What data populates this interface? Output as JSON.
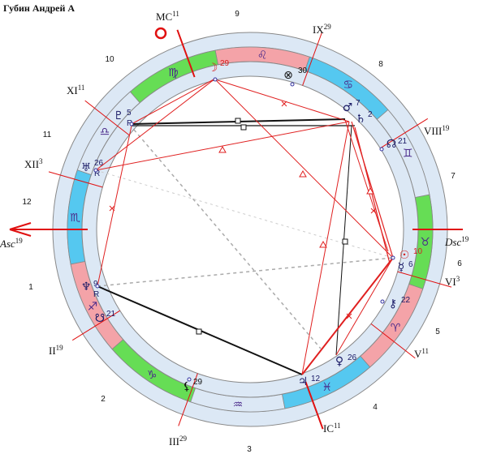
{
  "title": "Губин Андрей А",
  "house_numbers": [
    "1",
    "2",
    "3",
    "4",
    "5",
    "6",
    "7",
    "8",
    "9",
    "10",
    "11",
    "12"
  ],
  "cusps": [
    {
      "label": "Asc",
      "degree": "19"
    },
    {
      "label": "II",
      "degree": "19"
    },
    {
      "label": "III",
      "degree": "29"
    },
    {
      "label": "IC",
      "degree": "11"
    },
    {
      "label": "V",
      "degree": "11"
    },
    {
      "label": "VI",
      "degree": "3"
    },
    {
      "label": "Dsc",
      "degree": "19"
    },
    {
      "label": "VIII",
      "degree": "19"
    },
    {
      "label": "IX",
      "degree": "29"
    },
    {
      "label": "MC",
      "degree": "11"
    },
    {
      "label": "XI",
      "degree": "11"
    },
    {
      "label": "XII",
      "degree": "3"
    }
  ],
  "signs": [
    "♈",
    "♉",
    "♊",
    "♋",
    "♌",
    "♍",
    "♎",
    "♏",
    "♐",
    "♑",
    "♒",
    "♓"
  ],
  "planets": [
    {
      "glyph": "☽",
      "degree": "29",
      "color": "#d42020"
    },
    {
      "glyph": "⊗",
      "degree": "30",
      "color": "#111111"
    },
    {
      "glyph": "♂",
      "degree": "7",
      "color": "#1a1a66"
    },
    {
      "glyph": "♄",
      "degree": "2",
      "color": "#1a1a66"
    },
    {
      "glyph": "☊",
      "degree": "21",
      "color": "#1a1a66"
    },
    {
      "glyph": "☉",
      "degree": "10",
      "color": "#d42020"
    },
    {
      "glyph": "☿",
      "degree": "6",
      "color": "#1a1a66"
    },
    {
      "glyph": "⚷",
      "degree": "22",
      "color": "#1a1a66"
    },
    {
      "glyph": "♀",
      "degree": "26",
      "color": "#1a1a66"
    },
    {
      "glyph": "♃",
      "degree": "12",
      "color": "#1a1a66"
    },
    {
      "glyph": "⚸",
      "degree": "29",
      "color": "#111111"
    },
    {
      "glyph": "☋",
      "degree": "21",
      "color": "#1a1a66"
    },
    {
      "glyph": "♆",
      "degree": "9",
      "retro": "R",
      "color": "#1a1a66"
    },
    {
      "glyph": "♅",
      "degree": "26",
      "retro": "R",
      "color": "#1a1a66"
    },
    {
      "glyph": "♇",
      "degree": "5",
      "retro": "R",
      "color": "#1a1a66"
    }
  ]
}
